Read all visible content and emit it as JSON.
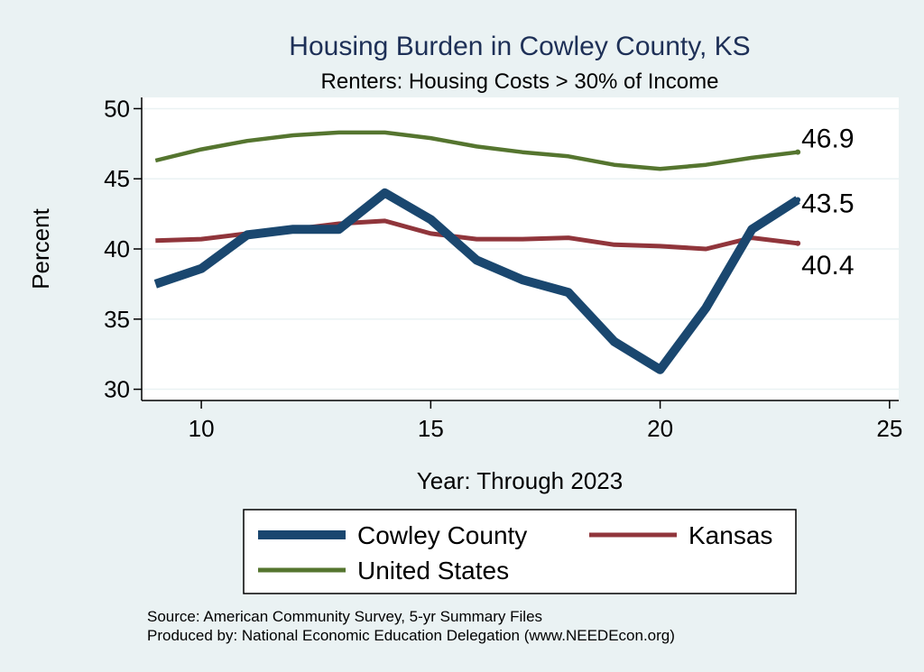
{
  "chart_data": {
    "type": "line",
    "title": "Housing Burden in Cowley County, KS",
    "subtitle": "Renters: Housing Costs > 30% of Income",
    "xlabel": "Year: Through 2023",
    "ylabel": "Percent",
    "xlim": [
      8.7,
      25.2
    ],
    "ylim": [
      29.2,
      50.8
    ],
    "xticks": [
      10,
      15,
      20,
      25
    ],
    "yticks": [
      30,
      35,
      40,
      45,
      50
    ],
    "x": [
      9,
      10,
      11,
      12,
      13,
      14,
      15,
      16,
      17,
      18,
      19,
      20,
      21,
      22,
      23
    ],
    "series": [
      {
        "name": "Cowley County",
        "color": "#1a476f",
        "values": [
          37.5,
          38.6,
          41.0,
          41.4,
          41.4,
          44.0,
          42.1,
          39.2,
          37.8,
          36.9,
          33.4,
          31.4,
          35.8,
          41.4,
          43.5
        ],
        "end_label": "43.5"
      },
      {
        "name": "Kansas",
        "color": "#90353b",
        "values": [
          40.6,
          40.7,
          41.1,
          41.4,
          41.8,
          42.0,
          41.1,
          40.7,
          40.7,
          40.8,
          40.3,
          40.2,
          40.0,
          40.8,
          40.4
        ],
        "end_label": "40.4"
      },
      {
        "name": "United States",
        "color": "#55752f",
        "values": [
          46.3,
          47.1,
          47.7,
          48.1,
          48.3,
          48.3,
          47.9,
          47.3,
          46.9,
          46.6,
          46.0,
          45.7,
          46.0,
          46.5,
          46.9
        ],
        "end_label": "46.9"
      }
    ],
    "legend": [
      "Cowley County",
      "Kansas",
      "United States"
    ],
    "legend_position": "bottom",
    "grid": true
  },
  "notes": {
    "source": "Source: American Community Survey, 5-yr Summary Files",
    "produced_by": "Produced by: National Economic Education Delegation (www.NEEDEcon.org)"
  }
}
